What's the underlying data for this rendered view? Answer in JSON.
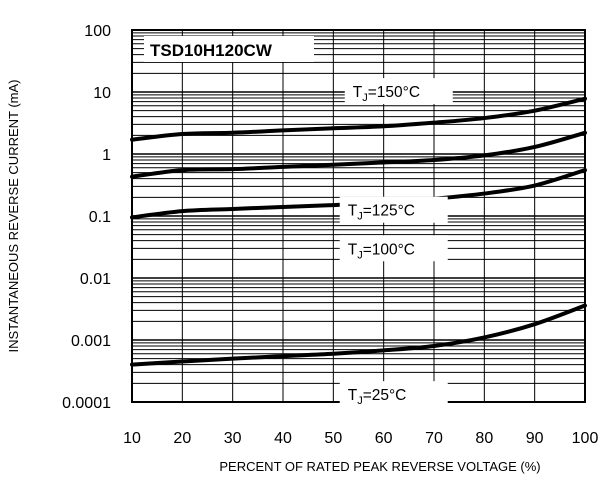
{
  "chart_data": {
    "type": "line",
    "title": "TSD10H120CW",
    "xlabel": "PERCENT OF RATED PEAK REVERSE VOLTAGE (%)",
    "ylabel": "INSTANTANEOUS REVERSE CURRENT (mA)",
    "xlim": [
      10,
      100
    ],
    "ylim": [
      0.0001,
      100
    ],
    "yscale": "log",
    "grid": true,
    "x_ticks": [
      "10",
      "20",
      "30",
      "40",
      "50",
      "60",
      "70",
      "80",
      "90",
      "100"
    ],
    "y_ticks": [
      "0.0001",
      "0.001",
      "0.01",
      "0.1",
      "1",
      "10",
      "100"
    ],
    "series": [
      {
        "name": "150°C",
        "x": [
          10,
          20,
          30,
          40,
          50,
          60,
          70,
          80,
          90,
          100
        ],
        "values": [
          1.7,
          2.1,
          2.2,
          2.4,
          2.6,
          2.8,
          3.2,
          3.8,
          5.0,
          7.8
        ]
      },
      {
        "name": "125°C",
        "x": [
          10,
          20,
          30,
          40,
          50,
          60,
          70,
          80,
          90,
          100
        ],
        "values": [
          0.43,
          0.55,
          0.57,
          0.62,
          0.67,
          0.73,
          0.8,
          0.95,
          1.3,
          2.2
        ]
      },
      {
        "name": "100°C",
        "x": [
          10,
          20,
          30,
          40,
          50,
          60,
          70,
          80,
          90,
          100
        ],
        "values": [
          0.095,
          0.12,
          0.13,
          0.14,
          0.15,
          0.165,
          0.19,
          0.23,
          0.31,
          0.55
        ]
      },
      {
        "name": "25°C",
        "x": [
          10,
          20,
          30,
          40,
          50,
          60,
          70,
          80,
          90,
          100
        ],
        "values": [
          0.0004,
          0.00045,
          0.0005,
          0.00055,
          0.0006,
          0.00068,
          0.0008,
          0.0011,
          0.0018,
          0.0036
        ]
      }
    ],
    "series_label_prefix": "T",
    "series_label_sub": "J",
    "series_label_eq": "=",
    "series_label_positions_x": [
      63,
      62,
      62,
      62
    ]
  }
}
